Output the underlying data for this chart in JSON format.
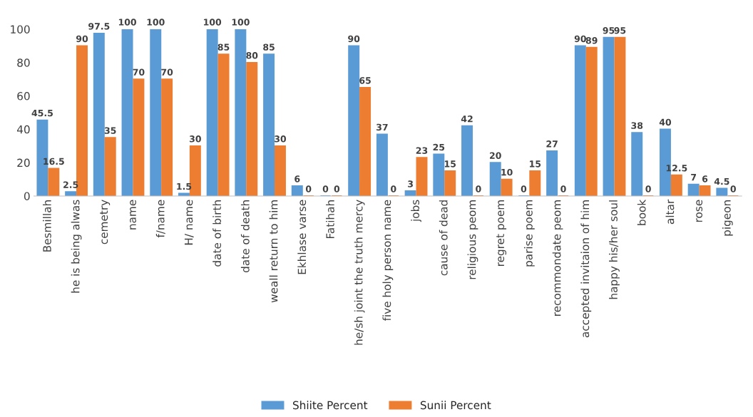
{
  "chart_data": {
    "type": "bar",
    "categories": [
      "Besmillah",
      "he is being alwas",
      "cemetry",
      "name",
      "f/name",
      "H/ name",
      "date of birth",
      "date of death",
      "weall return to him",
      "Ekhlase varse",
      "Fatihah",
      "he/sh joint the truth mercy",
      "five holy person name",
      "jobs",
      "cause of dead",
      "religious peom",
      "regret poem",
      "parise poem",
      "recommondate peom",
      "accepted invitaion of him",
      "happy his/her soul",
      "book",
      "altar",
      "rose",
      "pigeon"
    ],
    "series": [
      {
        "name": "Shiite Percent",
        "color": "#5b9bd5",
        "values": [
          45.5,
          2.5,
          97.5,
          100,
          100,
          1.5,
          100,
          100,
          85,
          6,
          0,
          90,
          37,
          3,
          25,
          42,
          20,
          0,
          27,
          90,
          95,
          38,
          40,
          7,
          4.5
        ]
      },
      {
        "name": "Sunii Percent",
        "color": "#ed7d31",
        "values": [
          16.5,
          90,
          35,
          70,
          70,
          30,
          85,
          80,
          30,
          0,
          0,
          65,
          0,
          23,
          15,
          0,
          10,
          15,
          0,
          89,
          95,
          0,
          12.5,
          6,
          0
        ]
      }
    ],
    "ylim": [
      0,
      100
    ],
    "yticks": [
      0,
      20,
      40,
      60,
      80,
      100
    ],
    "data_labels": true,
    "grid": false,
    "legend": "bottom"
  }
}
